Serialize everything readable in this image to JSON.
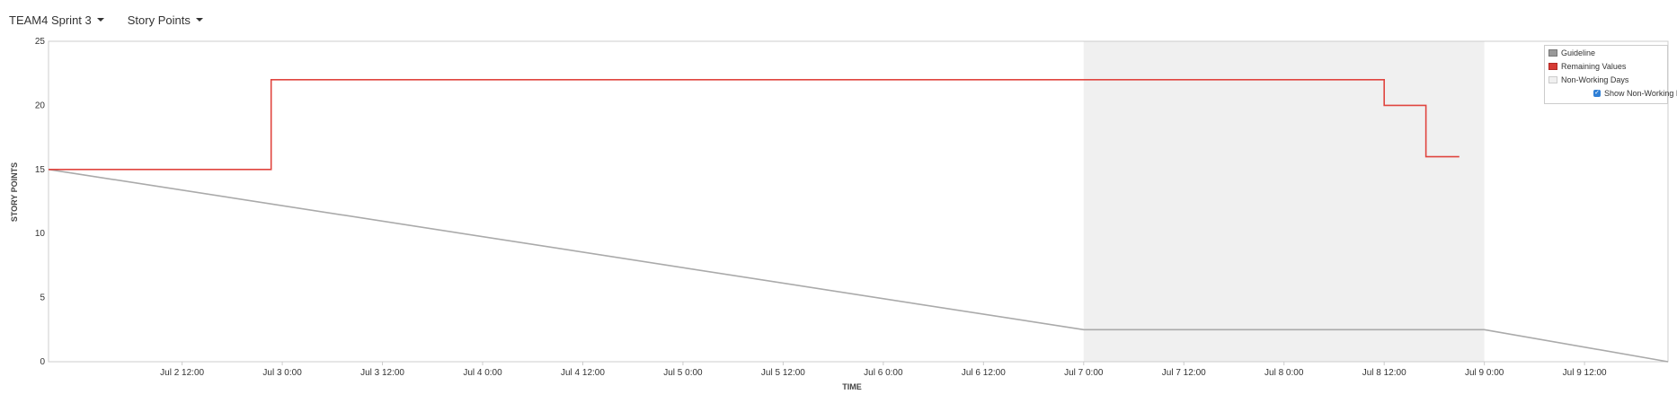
{
  "toolbar": {
    "sprint_label": "TEAM4 Sprint 3",
    "metric_label": "Story Points"
  },
  "colors": {
    "guideline": "#aaaaaa",
    "remaining": "#e0453f",
    "non_working": "#f0f0f0"
  },
  "chart_data": {
    "type": "line",
    "xlabel": "TIME",
    "ylabel": "STORY POINTS",
    "x_range": [
      "2016-07-01 20:00",
      "2016-07-09 22:00"
    ],
    "ylim": [
      0,
      25
    ],
    "y_ticks": [
      0,
      5,
      10,
      15,
      20,
      25
    ],
    "x_ticks": [
      {
        "t": "2016-07-02 12:00",
        "label": "Jul 2 12:00"
      },
      {
        "t": "2016-07-03 00:00",
        "label": "Jul 3 0:00"
      },
      {
        "t": "2016-07-03 12:00",
        "label": "Jul 3 12:00"
      },
      {
        "t": "2016-07-04 00:00",
        "label": "Jul 4 0:00"
      },
      {
        "t": "2016-07-04 12:00",
        "label": "Jul 4 12:00"
      },
      {
        "t": "2016-07-05 00:00",
        "label": "Jul 5 0:00"
      },
      {
        "t": "2016-07-05 12:00",
        "label": "Jul 5 12:00"
      },
      {
        "t": "2016-07-06 00:00",
        "label": "Jul 6 0:00"
      },
      {
        "t": "2016-07-06 12:00",
        "label": "Jul 6 12:00"
      },
      {
        "t": "2016-07-07 00:00",
        "label": "Jul 7 0:00"
      },
      {
        "t": "2016-07-07 12:00",
        "label": "Jul 7 12:00"
      },
      {
        "t": "2016-07-08 00:00",
        "label": "Jul 8 0:00"
      },
      {
        "t": "2016-07-08 12:00",
        "label": "Jul 8 12:00"
      },
      {
        "t": "2016-07-09 00:00",
        "label": "Jul 9 0:00"
      },
      {
        "t": "2016-07-09 12:00",
        "label": "Jul 9 12:00"
      }
    ],
    "non_working_days": [
      [
        "2016-07-07 00:00",
        "2016-07-09 00:00"
      ]
    ],
    "series": [
      {
        "name": "Guideline",
        "style": "line",
        "points": [
          {
            "x": "2016-07-01 20:00",
            "y": 15
          },
          {
            "x": "2016-07-07 00:00",
            "y": 2.5
          },
          {
            "x": "2016-07-09 00:00",
            "y": 2.5
          },
          {
            "x": "2016-07-09 22:00",
            "y": 0
          }
        ]
      },
      {
        "name": "Remaining Values",
        "style": "step",
        "points": [
          {
            "x": "2016-07-01 20:00",
            "y": 15
          },
          {
            "x": "2016-07-02 22:40",
            "y": 22
          },
          {
            "x": "2016-07-08 12:00",
            "y": 20
          },
          {
            "x": "2016-07-08 17:00",
            "y": 16
          },
          {
            "x": "2016-07-08 21:00",
            "y": 16
          }
        ]
      }
    ],
    "legend": {
      "position": "top-right",
      "items": [
        "Guideline",
        "Remaining Values",
        "Non-Working Days"
      ],
      "checkbox_label": "Show Non-Working Days",
      "checkbox_checked": true
    }
  }
}
